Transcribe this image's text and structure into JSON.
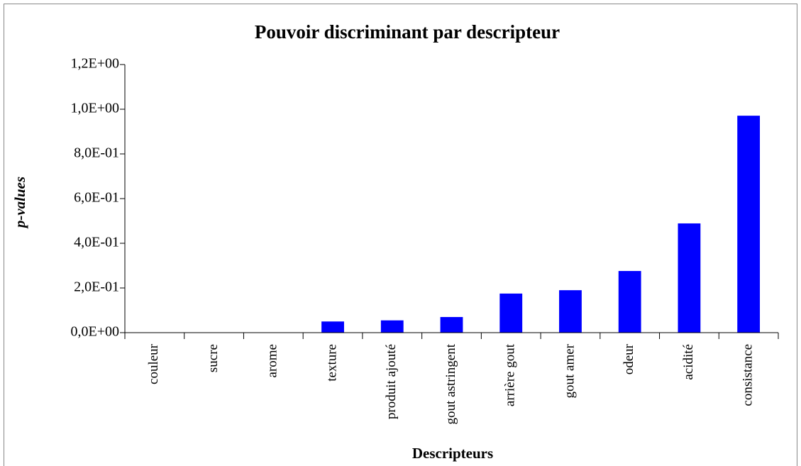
{
  "chart_data": {
    "type": "bar",
    "title": "Pouvoir discriminant par descripteur",
    "x_label": "Descripteurs",
    "y_label": "p-values",
    "categories": [
      "couleur",
      "sucre",
      "arome",
      "texture",
      "produit ajouté",
      "gout astringent",
      "arrière gout",
      "gout amer",
      "odeur",
      "acidité",
      "consistance"
    ],
    "values": [
      0,
      0,
      0,
      0.05,
      0.055,
      0.07,
      0.175,
      0.19,
      0.276,
      0.489,
      0.971
    ],
    "color": "#0000ff",
    "ylim": [
      0,
      1.2
    ],
    "yticks": [
      {
        "value": 0,
        "label": "0,0E+00"
      },
      {
        "value": 0.2,
        "label": "2,0E-01"
      },
      {
        "value": 0.4,
        "label": "4,0E-01"
      },
      {
        "value": 0.6,
        "label": "6,0E-01"
      },
      {
        "value": 0.8,
        "label": "8,0E-01"
      },
      {
        "value": 1.0,
        "label": "1,0E+00"
      },
      {
        "value": 1.2,
        "label": "1,2E+00"
      }
    ],
    "grid": false
  }
}
